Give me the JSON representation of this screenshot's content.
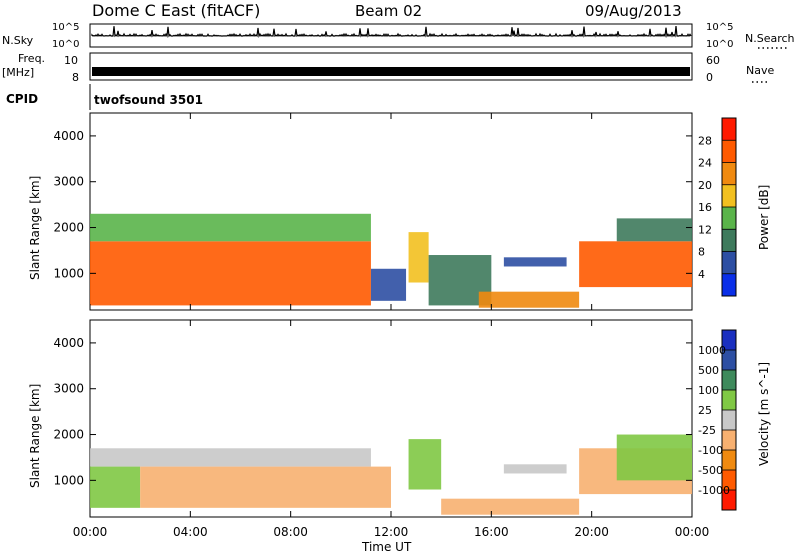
{
  "header": {
    "station": "Dome C East (fitACF)",
    "beam": "Beam 02",
    "date": "09/Aug/2013"
  },
  "summary_panels": {
    "nsky_label": "N.Sky",
    "nsky_ticks": [
      "10^5",
      "10^0"
    ],
    "nsky_right_ticks": [
      "10^5",
      "10^0"
    ],
    "nsearch_label": "N.Search",
    "freq_label_line1": "Freq.",
    "freq_label_line2": "[MHz]",
    "freq_ticks": [
      "10",
      "8"
    ],
    "nave_label": "Nave",
    "nave_ticks": [
      "60",
      "0"
    ],
    "cpid_label": "CPID",
    "cpid_value": "twofsound 3501"
  },
  "colors": {
    "power_scale": [
      "#0a2fe8",
      "#2d4fa3",
      "#3e7a5c",
      "#5ab44a",
      "#f2c020",
      "#f08a10",
      "#ff5a00",
      "#ff1a00"
    ],
    "velocity_scale": [
      "#ff1a00",
      "#ff5a00",
      "#f08a10",
      "#f7b070",
      "#c8c8c8",
      "#80c844",
      "#3e8a5c",
      "#2d4fa3",
      "#1a2fc0"
    ]
  },
  "chart_data": [
    {
      "type": "heatmap",
      "name": "power",
      "ylabel": "Slant Range [km]",
      "xlabel": "Time UT",
      "x_ticks": [
        "00:00",
        "04:00",
        "08:00",
        "12:00",
        "16:00",
        "20:00",
        "00:00"
      ],
      "y_ticks": [
        1000,
        2000,
        3000,
        4000
      ],
      "ylim": [
        200,
        4500
      ],
      "xlim_hours": [
        0,
        24
      ],
      "colorbar": {
        "label": "Power [dB]",
        "ticks": [
          4,
          8,
          12,
          16,
          20,
          24,
          28
        ],
        "range": [
          0,
          32
        ]
      },
      "regions": [
        {
          "t0": 0.0,
          "t1": 11.2,
          "r0": 300,
          "r1": 1700,
          "value": 27
        },
        {
          "t0": 0.0,
          "t1": 11.2,
          "r0": 1700,
          "r1": 2300,
          "value": 14
        },
        {
          "t0": 11.2,
          "t1": 12.6,
          "r0": 400,
          "r1": 1100,
          "value": 6
        },
        {
          "t0": 12.7,
          "t1": 13.5,
          "r0": 800,
          "r1": 1900,
          "value": 18
        },
        {
          "t0": 13.5,
          "t1": 16.0,
          "r0": 300,
          "r1": 1400,
          "value": 8
        },
        {
          "t0": 15.5,
          "t1": 19.5,
          "r0": 250,
          "r1": 600,
          "value": 22
        },
        {
          "t0": 16.5,
          "t1": 19.0,
          "r0": 1150,
          "r1": 1350,
          "value": 7
        },
        {
          "t0": 19.5,
          "t1": 24.0,
          "r0": 700,
          "r1": 1700,
          "value": 24
        },
        {
          "t0": 21.0,
          "t1": 24.0,
          "r0": 1700,
          "r1": 2200,
          "value": 8
        }
      ]
    },
    {
      "type": "heatmap",
      "name": "velocity",
      "ylabel": "Slant Range [km]",
      "xlabel": "Time UT",
      "x_ticks": [
        "00:00",
        "04:00",
        "08:00",
        "12:00",
        "16:00",
        "20:00",
        "00:00"
      ],
      "y_ticks": [
        1000,
        2000,
        3000,
        4000
      ],
      "ylim": [
        200,
        4500
      ],
      "xlim_hours": [
        0,
        24
      ],
      "colorbar": {
        "label": "Velocity [m s^-1]",
        "ticks": [
          -1000,
          -500,
          -100,
          -25,
          25,
          100,
          500,
          1000
        ],
        "range": [
          -1200,
          1200
        ]
      },
      "regions": [
        {
          "t0": 0.0,
          "t1": 11.2,
          "r0": 1300,
          "r1": 1700,
          "value": 0
        },
        {
          "t0": 0.0,
          "t1": 2.0,
          "r0": 400,
          "r1": 1300,
          "value": 150
        },
        {
          "t0": 2.0,
          "t1": 12.0,
          "r0": 400,
          "r1": 1300,
          "value": -300
        },
        {
          "t0": 12.7,
          "t1": 14.0,
          "r0": 800,
          "r1": 1900,
          "value": 300
        },
        {
          "t0": 14.0,
          "t1": 19.5,
          "r0": 250,
          "r1": 600,
          "value": -200
        },
        {
          "t0": 16.5,
          "t1": 19.0,
          "r0": 1150,
          "r1": 1350,
          "value": 0
        },
        {
          "t0": 19.5,
          "t1": 24.0,
          "r0": 700,
          "r1": 1700,
          "value": -300
        },
        {
          "t0": 21.0,
          "t1": 24.0,
          "r0": 1000,
          "r1": 2000,
          "value": 200
        }
      ]
    }
  ]
}
